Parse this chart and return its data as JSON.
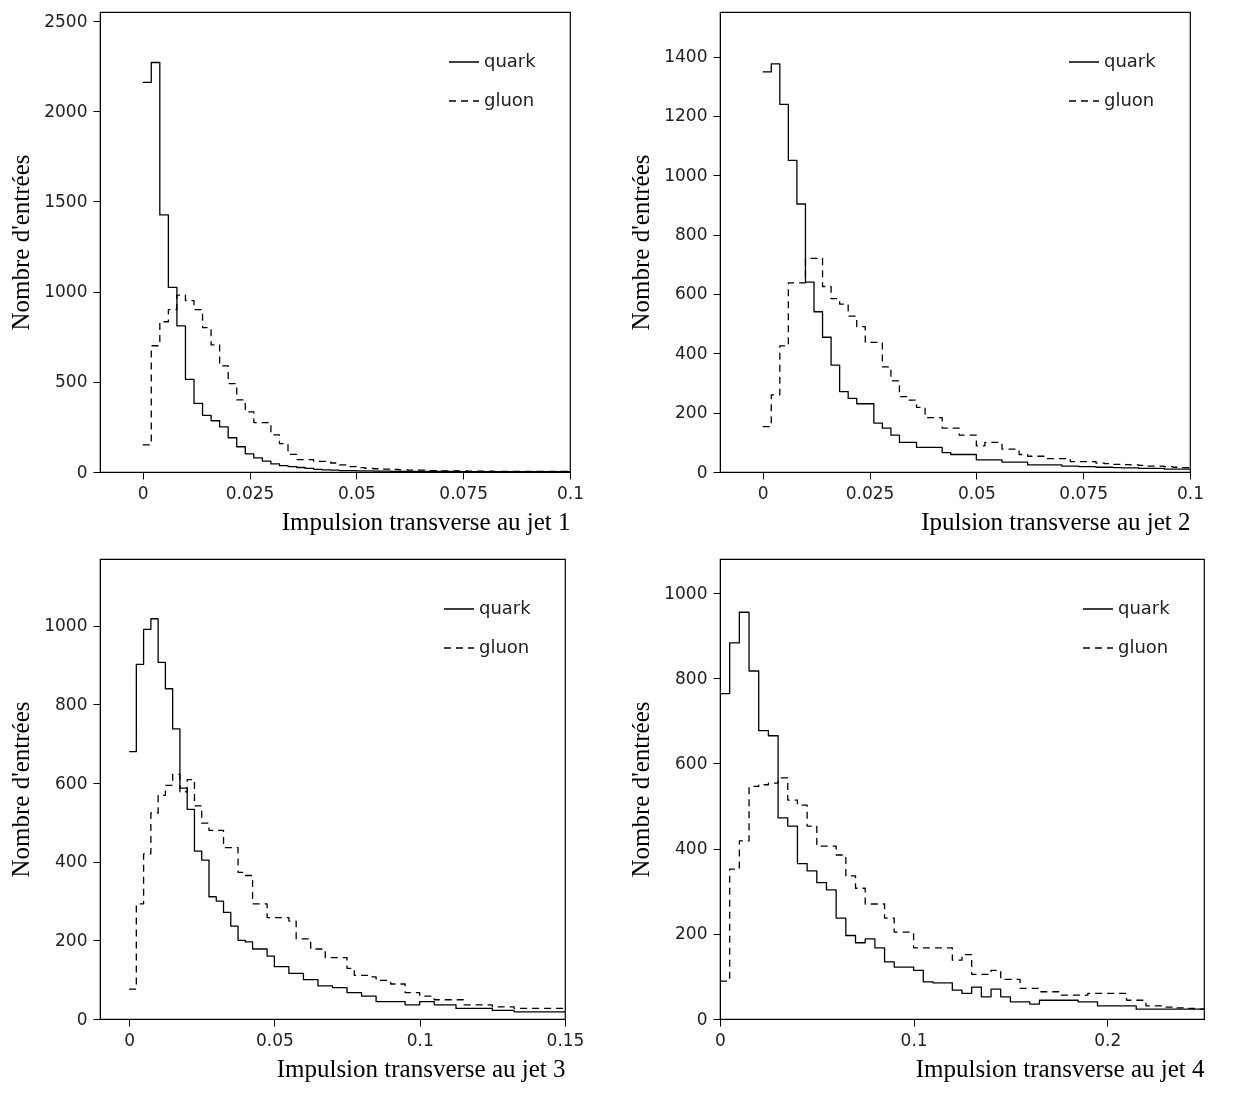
{
  "chart_data": [
    {
      "type": "histogram",
      "xlabel": "Impulsion transverse au jet 1",
      "ylabel": "Nombre d'entrées",
      "legend": "top right",
      "xlim": [
        -0.01,
        0.1
      ],
      "ylim": [
        0,
        2550
      ],
      "xticks": [
        0,
        0.025,
        0.05,
        0.075,
        0.1
      ],
      "yticks": [
        0,
        500,
        1000,
        1500,
        2000,
        2500
      ],
      "bins": [
        0,
        0.002,
        0.004,
        0.006,
        0.008,
        0.01,
        0.012,
        0.014,
        0.016,
        0.018,
        0.02,
        0.022,
        0.024,
        0.026,
        0.028,
        0.03,
        0.032,
        0.034,
        0.036,
        0.038,
        0.04,
        0.042,
        0.044,
        0.046,
        0.048,
        0.05,
        0.052,
        0.054,
        0.056,
        0.058,
        0.06,
        0.062,
        0.064,
        0.066,
        0.068,
        0.07,
        0.072,
        0.074,
        0.076,
        0.078,
        0.08,
        0.082,
        0.084,
        0.086,
        0.088,
        0.09,
        0.092,
        0.094,
        0.096,
        0.098,
        0.1
      ],
      "series": [
        {
          "name": "quark",
          "color": "#000000",
          "line_style": "solid",
          "values": [
            2160,
            2270,
            1425,
            1023,
            810,
            513,
            380,
            314,
            284,
            250,
            190,
            140,
            100,
            78,
            60,
            45,
            35,
            30,
            25,
            20,
            15,
            12,
            10,
            8,
            8,
            6,
            6,
            5,
            5,
            4,
            4,
            4,
            3,
            3,
            3,
            3,
            3,
            2,
            2,
            2,
            2,
            2,
            2,
            2,
            2,
            2,
            2,
            2,
            2,
            2
          ]
        },
        {
          "name": "gluon",
          "color": "#000000",
          "line_style": "dashed",
          "values": [
            150,
            700,
            833,
            900,
            980,
            950,
            900,
            800,
            705,
            588,
            490,
            400,
            333,
            274,
            274,
            206,
            157,
            98,
            69,
            69,
            59,
            59,
            50,
            39,
            30,
            24,
            20,
            18,
            16,
            14,
            12,
            10,
            10,
            8,
            8,
            6,
            6,
            6,
            5,
            5,
            5,
            4,
            4,
            4,
            4,
            3,
            3,
            3,
            3,
            3
          ]
        }
      ]
    },
    {
      "type": "histogram",
      "xlabel": "Ipulsion transverse au jet 2",
      "ylabel": "Nombre d'entrées",
      "legend": "top right",
      "xlim": [
        -0.01,
        0.1
      ],
      "ylim": [
        0,
        1550
      ],
      "xticks": [
        0,
        0.025,
        0.05,
        0.075,
        0.1
      ],
      "yticks": [
        0,
        200,
        400,
        600,
        800,
        1000,
        1200,
        1400
      ],
      "bins": [
        0,
        0.002,
        0.004,
        0.006,
        0.008,
        0.01,
        0.012,
        0.014,
        0.016,
        0.018,
        0.02,
        0.022,
        0.024,
        0.026,
        0.028,
        0.03,
        0.032,
        0.034,
        0.036,
        0.038,
        0.04,
        0.042,
        0.044,
        0.046,
        0.048,
        0.05,
        0.052,
        0.054,
        0.056,
        0.058,
        0.06,
        0.062,
        0.064,
        0.066,
        0.068,
        0.07,
        0.072,
        0.074,
        0.076,
        0.078,
        0.08,
        0.082,
        0.084,
        0.086,
        0.088,
        0.09,
        0.092,
        0.094,
        0.096,
        0.098,
        0.1
      ],
      "series": [
        {
          "name": "quark",
          "color": "#000000",
          "line_style": "solid",
          "values": [
            1348,
            1375,
            1239,
            1050,
            903,
            640,
            540,
            454,
            360,
            271,
            248,
            230,
            230,
            165,
            148,
            124,
            100,
            100,
            83,
            83,
            83,
            65,
            59,
            59,
            59,
            41,
            41,
            41,
            33,
            33,
            33,
            24,
            24,
            24,
            24,
            20,
            20,
            18,
            18,
            16,
            16,
            15,
            14,
            14,
            12,
            12,
            12,
            10,
            10,
            10
          ]
        },
        {
          "name": "gluon",
          "color": "#000000",
          "line_style": "dashed",
          "values": [
            153,
            260,
            425,
            637,
            637,
            720,
            720,
            625,
            584,
            566,
            525,
            490,
            437,
            437,
            354,
            307,
            254,
            242,
            218,
            183,
            183,
            148,
            148,
            124,
            124,
            88,
            100,
            100,
            77,
            77,
            59,
            53,
            53,
            45,
            45,
            45,
            35,
            35,
            35,
            30,
            28,
            26,
            25,
            24,
            22,
            20,
            20,
            18,
            16,
            15
          ]
        }
      ]
    },
    {
      "type": "histogram",
      "xlabel": "Impulsion transverse au jet 3",
      "ylabel": "Nombre d'entrées",
      "legend": "top right",
      "xlim": [
        -0.01,
        0.15
      ],
      "ylim": [
        0,
        1170
      ],
      "xticks": [
        0,
        0.05,
        0.1,
        0.15
      ],
      "yticks": [
        0,
        200,
        400,
        600,
        800,
        1000
      ],
      "bins": [
        0,
        0.0025,
        0.005,
        0.0075,
        0.01,
        0.0125,
        0.015,
        0.0175,
        0.02,
        0.0225,
        0.025,
        0.0275,
        0.03,
        0.0325,
        0.035,
        0.0375,
        0.04,
        0.0425,
        0.045,
        0.0475,
        0.05,
        0.0525,
        0.055,
        0.0575,
        0.06,
        0.0625,
        0.065,
        0.0675,
        0.07,
        0.0725,
        0.075,
        0.0775,
        0.08,
        0.0825,
        0.085,
        0.0875,
        0.09,
        0.0925,
        0.095,
        0.0975,
        0.1,
        0.1025,
        0.105,
        0.1075,
        0.11,
        0.1125,
        0.115,
        0.1175,
        0.12,
        0.1225,
        0.125,
        0.1275,
        0.13,
        0.1325,
        0.135,
        0.1375,
        0.14,
        0.1425,
        0.145,
        0.1475,
        0.15
      ],
      "series": [
        {
          "name": "quark",
          "color": "#000000",
          "line_style": "solid",
          "values": [
            680,
            902,
            991,
            1018,
            907,
            840,
            738,
            587,
            533,
            427,
            404,
            311,
            300,
            271,
            236,
            200,
            196,
            178,
            178,
            160,
            133,
            133,
            116,
            116,
            100,
            100,
            84,
            84,
            80,
            80,
            67,
            67,
            58,
            58,
            44,
            44,
            44,
            44,
            36,
            36,
            44,
            44,
            36,
            36,
            36,
            27,
            27,
            27,
            27,
            27,
            22,
            22,
            22,
            18,
            18,
            18,
            18,
            18,
            18,
            18
          ]
        },
        {
          "name": "gluon",
          "color": "#000000",
          "line_style": "dashed",
          "values": [
            76,
            293,
            420,
            524,
            569,
            594,
            622,
            578,
            609,
            542,
            498,
            480,
            480,
            436,
            436,
            373,
            365,
            293,
            293,
            258,
            258,
            258,
            249,
            204,
            204,
            178,
            178,
            156,
            156,
            156,
            129,
            111,
            111,
            107,
            98,
            98,
            89,
            89,
            67,
            67,
            58,
            58,
            49,
            49,
            49,
            49,
            36,
            36,
            36,
            36,
            31,
            31,
            31,
            27,
            27,
            27,
            27,
            27,
            27,
            27
          ]
        }
      ]
    },
    {
      "type": "histogram",
      "xlabel": "Impulsion transverse au jet 4",
      "ylabel": "Nombre d'entrées",
      "legend": "top right",
      "xlim": [
        0,
        0.25
      ],
      "ylim": [
        0,
        1080
      ],
      "xticks": [
        0,
        0.1,
        0.2
      ],
      "yticks": [
        0,
        200,
        400,
        600,
        800,
        1000
      ],
      "bins": [
        0,
        0.005,
        0.01,
        0.015,
        0.02,
        0.025,
        0.03,
        0.035,
        0.04,
        0.045,
        0.05,
        0.055,
        0.06,
        0.065,
        0.07,
        0.075,
        0.08,
        0.085,
        0.09,
        0.095,
        0.1,
        0.105,
        0.11,
        0.115,
        0.12,
        0.125,
        0.13,
        0.135,
        0.14,
        0.145,
        0.15,
        0.155,
        0.16,
        0.165,
        0.17,
        0.175,
        0.18,
        0.185,
        0.19,
        0.195,
        0.2,
        0.205,
        0.21,
        0.215,
        0.22,
        0.225,
        0.23,
        0.235,
        0.24,
        0.245,
        0.25
      ],
      "series": [
        {
          "name": "quark",
          "color": "#000000",
          "line_style": "solid",
          "values": [
            764,
            883,
            955,
            817,
            677,
            665,
            472,
            453,
            365,
            348,
            320,
            303,
            237,
            196,
            179,
            188,
            167,
            134,
            122,
            122,
            114,
            87,
            85,
            85,
            68,
            60,
            75,
            52,
            70,
            52,
            40,
            40,
            35,
            44,
            44,
            44,
            44,
            40,
            40,
            31,
            31,
            31,
            31,
            23,
            23,
            23,
            23,
            23,
            23,
            23
          ]
        },
        {
          "name": "gluon",
          "color": "#000000",
          "line_style": "dashed",
          "values": [
            89,
            352,
            418,
            546,
            550,
            554,
            566,
            514,
            502,
            453,
            406,
            406,
            385,
            336,
            307,
            270,
            270,
            237,
            204,
            204,
            167,
            167,
            167,
            167,
            138,
            151,
            105,
            105,
            114,
            93,
            93,
            72,
            72,
            64,
            64,
            56,
            56,
            56,
            60,
            60,
            60,
            60,
            44,
            44,
            31,
            31,
            28,
            26,
            25,
            23
          ]
        }
      ]
    }
  ]
}
